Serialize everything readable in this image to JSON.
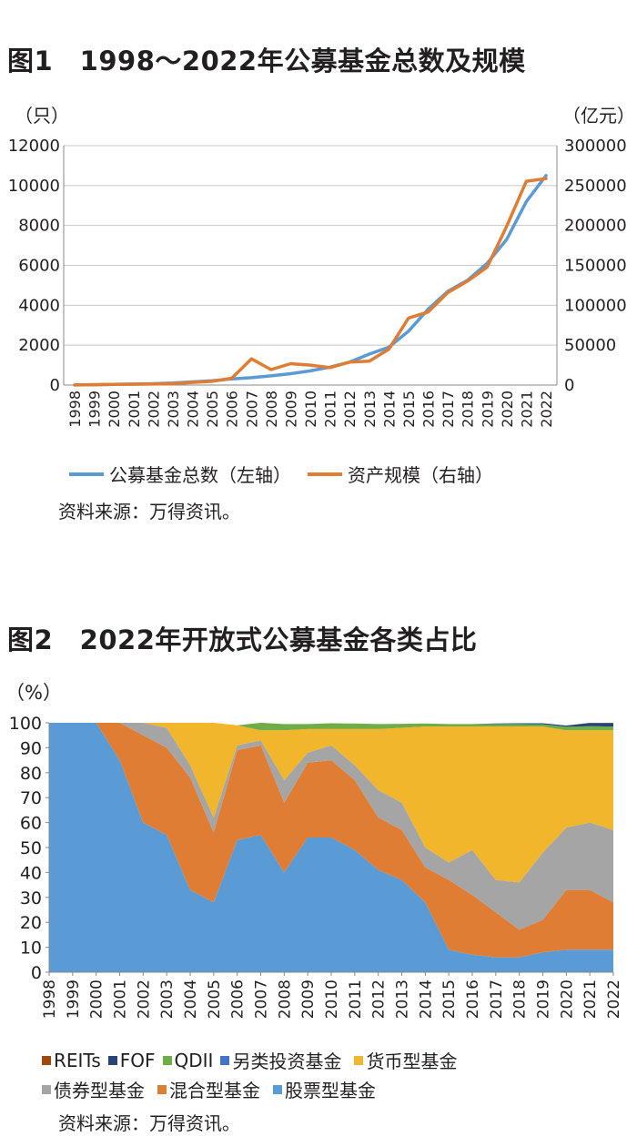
{
  "chart_data": [
    {
      "type": "line",
      "title": "图1　1998～2022年公募基金总数及规模",
      "x": [
        "1998",
        "1999",
        "2000",
        "2001",
        "2002",
        "2003",
        "2004",
        "2005",
        "2006",
        "2007",
        "2008",
        "2009",
        "2010",
        "2011",
        "2012",
        "2013",
        "2014",
        "2015",
        "2016",
        "2017",
        "2018",
        "2019",
        "2020",
        "2021",
        "2022"
      ],
      "y_left_unit": "（只）",
      "y_right_unit": "（亿元）",
      "ylim_left": [
        0,
        12000
      ],
      "ylim_right": [
        0,
        300000
      ],
      "yticks_left": [
        "0",
        "2000",
        "4000",
        "6000",
        "8000",
        "10000",
        "12000"
      ],
      "yticks_right": [
        "0",
        "50000",
        "100000",
        "150000",
        "200000",
        "250000",
        "300000"
      ],
      "series": [
        {
          "name": "公募基金总数（左轴）",
          "axis": "left",
          "color": "#5b9bd5",
          "values": [
            5,
            20,
            35,
            50,
            70,
            100,
            160,
            220,
            310,
            370,
            460,
            570,
            710,
            900,
            1150,
            1550,
            1900,
            2700,
            3800,
            4700,
            5250,
            6100,
            7300,
            9200,
            10500
          ]
        },
        {
          "name": "资产规模（右轴）",
          "axis": "right",
          "color": "#e07d34",
          "values": [
            100,
            500,
            800,
            1000,
            1300,
            1700,
            3300,
            4700,
            8600,
            32800,
            19400,
            26800,
            25000,
            21900,
            28700,
            30000,
            45000,
            84000,
            91600,
            115900,
            130300,
            147700,
            198900,
            255400,
            258700
          ]
        }
      ],
      "grid": true,
      "legend": "bottom"
    },
    {
      "type": "area",
      "title": "图2　2022年开放式公募基金各类占比",
      "ylabel": "（%）",
      "ylim": [
        0,
        100
      ],
      "yticks": [
        "0",
        "10",
        "20",
        "30",
        "40",
        "50",
        "60",
        "70",
        "80",
        "90",
        "100"
      ],
      "x": [
        "1998",
        "1999",
        "2000",
        "2001",
        "2002",
        "2003",
        "2004",
        "2005",
        "2006",
        "2007",
        "2008",
        "2009",
        "2010",
        "2011",
        "2012",
        "2013",
        "2014",
        "2015",
        "2016",
        "2017",
        "2018",
        "2019",
        "2020",
        "2021",
        "2022"
      ],
      "stacked": true,
      "series": [
        {
          "name": "股票型基金",
          "color": "#5b9bd5",
          "values": [
            100,
            100,
            100,
            85,
            60,
            55,
            33,
            28,
            53,
            55,
            40,
            54,
            54,
            49,
            41,
            37,
            28,
            9,
            7,
            6,
            6,
            8,
            9,
            9,
            9
          ]
        },
        {
          "name": "混合型基金",
          "color": "#e07d34",
          "values": [
            0,
            0,
            0,
            15,
            35,
            35,
            45,
            28,
            36,
            36,
            28,
            30,
            31,
            28,
            21,
            20,
            14,
            28,
            24,
            18,
            11,
            13,
            24,
            24,
            19
          ]
        },
        {
          "name": "债券型基金",
          "color": "#a5a5a5",
          "values": [
            0,
            0,
            0,
            0,
            5,
            8,
            5,
            6,
            2,
            2,
            9,
            4,
            6,
            6,
            11,
            11,
            8,
            7,
            18,
            13,
            19,
            27,
            25,
            27,
            29
          ]
        },
        {
          "name": "货币型基金",
          "color": "#f2b62c",
          "values": [
            0,
            0,
            0,
            0,
            0,
            2,
            17,
            38,
            8,
            4,
            20,
            9.5,
            6.5,
            14.5,
            24.5,
            30,
            48.5,
            54.5,
            49.5,
            61.5,
            62.5,
            50.5,
            39,
            37,
            40
          ]
        },
        {
          "name": "另类投资基金",
          "color": "#4472c4",
          "values": [
            0,
            0,
            0,
            0,
            0,
            0,
            0,
            0,
            0,
            0,
            0,
            0,
            0,
            0,
            0,
            0,
            0,
            0,
            0,
            0,
            0,
            0,
            0,
            0,
            0
          ]
        },
        {
          "name": "QDII",
          "color": "#70ad47",
          "values": [
            0,
            0,
            0,
            0,
            0,
            0,
            0,
            0,
            0,
            3,
            2.5,
            2,
            2.3,
            2.2,
            2,
            1.6,
            1.2,
            1,
            1,
            1,
            1,
            0.9,
            1.4,
            1.6,
            1.5
          ]
        },
        {
          "name": "FOF",
          "color": "#264478",
          "values": [
            0,
            0,
            0,
            0,
            0,
            0,
            0,
            0,
            0,
            0,
            0,
            0,
            0,
            0,
            0,
            0,
            0,
            0,
            0,
            0.2,
            0.3,
            0.4,
            0.5,
            1.3,
            1.4
          ]
        },
        {
          "name": "REITs",
          "color": "#9e480e",
          "values": [
            0,
            0,
            0,
            0,
            0,
            0,
            0,
            0,
            0,
            0,
            0,
            0,
            0,
            0,
            0,
            0,
            0,
            0,
            0,
            0,
            0,
            0,
            0,
            0.1,
            0.1
          ]
        }
      ],
      "legend_order": [
        "REITs",
        "FOF",
        "QDII",
        "另类投资基金",
        "货币型基金",
        "债券型基金",
        "混合型基金",
        "股票型基金"
      ],
      "legend": "bottom"
    }
  ],
  "sources": {
    "chart1": "资料来源：万得资讯。",
    "chart2": "资料来源：万得资讯。"
  }
}
